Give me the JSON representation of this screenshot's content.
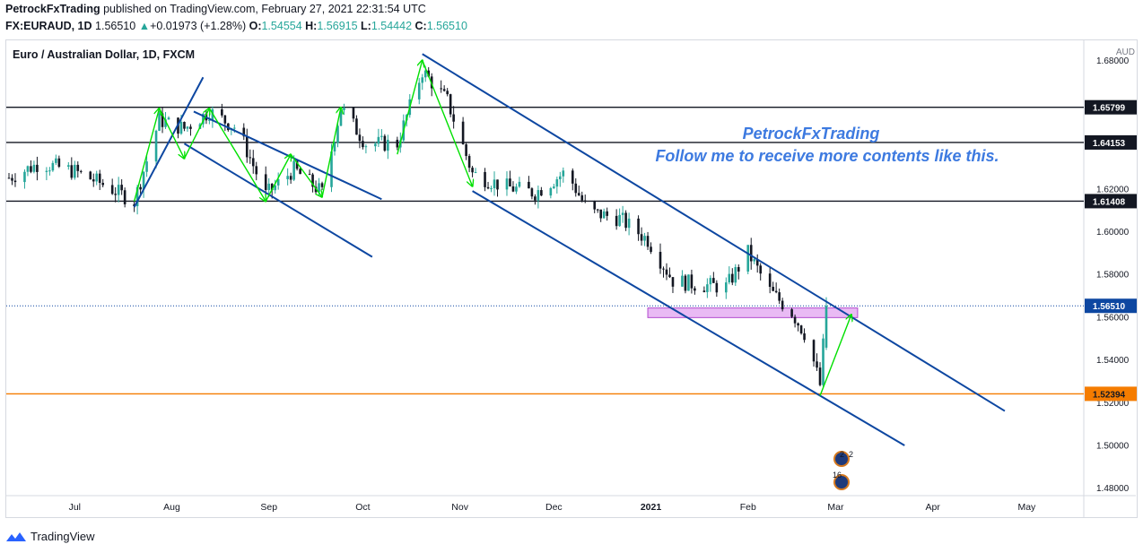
{
  "header": {
    "publisher": "PetrockFxTrading",
    "published_text": "published on TradingView.com, February 27, 2021 22:31:54 UTC",
    "symbol": "FX:EURAUD, 1D",
    "last": "1.56510",
    "change": "+0.01973 (+1.28%)",
    "o_label": "O:",
    "o_value": "1.54554",
    "h_label": "H:",
    "h_value": "1.56915",
    "l_label": "L:",
    "l_value": "1.54442",
    "c_label": "C:",
    "c_value": "1.56510",
    "up_arrow": "▲"
  },
  "footer": {
    "brand": "TradingView",
    "logo_icon": "tradingview-logo-icon"
  },
  "chart_data": {
    "type": "candlestick",
    "title": "Euro / Australian Dollar, 1D, FXCM",
    "currency_label": "AUD",
    "x_ticks": [
      "Jul",
      "Aug",
      "Sep",
      "Oct",
      "Nov",
      "Dec",
      "2021",
      "Feb",
      "Mar",
      "Apr",
      "May"
    ],
    "y_ticks": [
      "1.68000",
      "1.66000",
      "1.64000",
      "1.62000",
      "1.60000",
      "1.58000",
      "1.56000",
      "1.54000",
      "1.52000",
      "1.50000",
      "1.48000"
    ],
    "y_range": [
      1.47,
      1.68
    ],
    "horizontal_levels": [
      {
        "value": 1.65799,
        "label": "1.65799",
        "color": "#131722"
      },
      {
        "value": 1.64153,
        "label": "1.64153",
        "color": "#131722"
      },
      {
        "value": 1.61408,
        "label": "1.61408",
        "color": "#131722"
      },
      {
        "value": 1.52394,
        "label": "1.52394",
        "color": "#f57c00"
      }
    ],
    "last_price": {
      "value": 1.5651,
      "label": "1.56510",
      "color": "#0d47a1"
    },
    "approx_closes": [
      {
        "date": "2020-06-10",
        "close": 1.625
      },
      {
        "date": "2020-06-20",
        "close": 1.632
      },
      {
        "date": "2020-07-01",
        "close": 1.628
      },
      {
        "date": "2020-07-10",
        "close": 1.622
      },
      {
        "date": "2020-07-20",
        "close": 1.614
      },
      {
        "date": "2020-07-28",
        "close": 1.652
      },
      {
        "date": "2020-08-05",
        "close": 1.648
      },
      {
        "date": "2020-08-13",
        "close": 1.656
      },
      {
        "date": "2020-08-22",
        "close": 1.648
      },
      {
        "date": "2020-08-31",
        "close": 1.617
      },
      {
        "date": "2020-09-09",
        "close": 1.629
      },
      {
        "date": "2020-09-18",
        "close": 1.618
      },
      {
        "date": "2020-09-24",
        "close": 1.658
      },
      {
        "date": "2020-10-02",
        "close": 1.641
      },
      {
        "date": "2020-10-12",
        "close": 1.641
      },
      {
        "date": "2020-10-20",
        "close": 1.675
      },
      {
        "date": "2020-10-28",
        "close": 1.661
      },
      {
        "date": "2020-11-05",
        "close": 1.627
      },
      {
        "date": "2020-11-15",
        "close": 1.621
      },
      {
        "date": "2020-11-25",
        "close": 1.618
      },
      {
        "date": "2020-12-05",
        "close": 1.628
      },
      {
        "date": "2020-12-12",
        "close": 1.609
      },
      {
        "date": "2020-12-22",
        "close": 1.606
      },
      {
        "date": "2020-12-31",
        "close": 1.596
      },
      {
        "date": "2021-01-08",
        "close": 1.577
      },
      {
        "date": "2021-01-16",
        "close": 1.575
      },
      {
        "date": "2021-01-25",
        "close": 1.574
      },
      {
        "date": "2021-02-01",
        "close": 1.59
      },
      {
        "date": "2021-02-08",
        "close": 1.572
      },
      {
        "date": "2021-02-15",
        "close": 1.562
      },
      {
        "date": "2021-02-20",
        "close": 1.55
      },
      {
        "date": "2021-02-24",
        "close": 1.528
      },
      {
        "date": "2021-02-26",
        "close": 1.5651
      }
    ],
    "annotations": {
      "line1": "PetrockFxTrading",
      "line2": "Follow me to receive more contents like this."
    },
    "event_markers": [
      "2",
      "2",
      "16"
    ],
    "colors": {
      "up": "#26a69a",
      "down": "#131722",
      "channel": "#0d47a1",
      "zigzag": "#00e000",
      "zone": "#e1a3f0"
    }
  }
}
